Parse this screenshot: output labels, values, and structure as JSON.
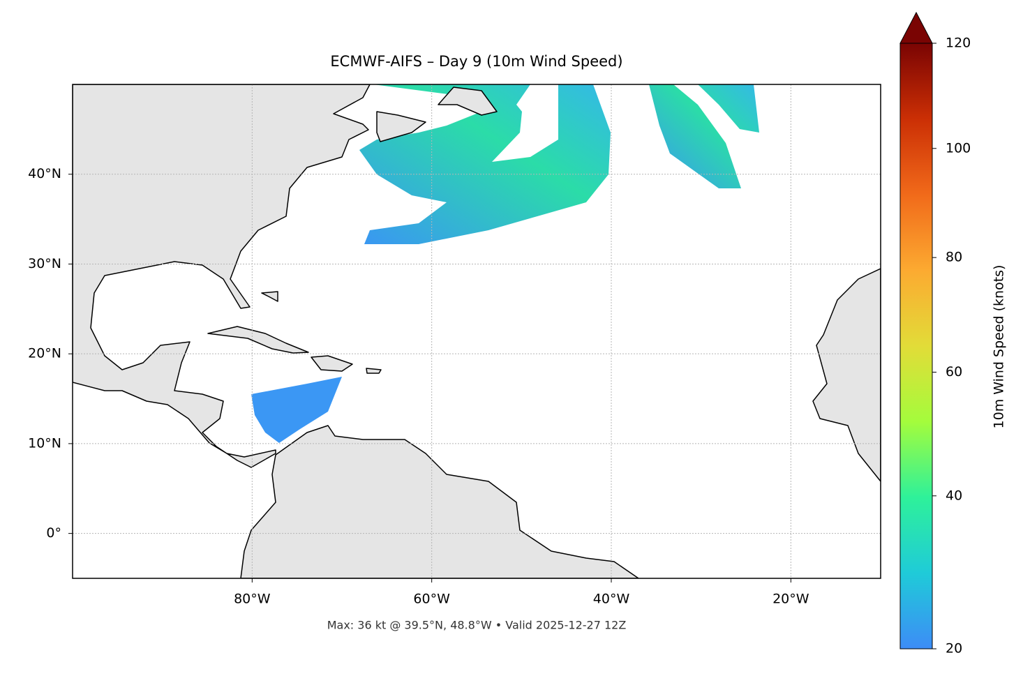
{
  "chart_data": {
    "type": "map",
    "title": "ECMWF-AIFS – Day 9 (10m Wind Speed)",
    "note": "Max: 36 kt @ 39.5°N, 48.8°W • Valid 2025-12-27 12Z",
    "xlim": [
      -100,
      -10
    ],
    "ylim": [
      -5,
      50
    ],
    "xticks": [
      {
        "value": -80,
        "label": "80°W"
      },
      {
        "value": -60,
        "label": "60°W"
      },
      {
        "value": -40,
        "label": "40°W"
      },
      {
        "value": -20,
        "label": "20°W"
      }
    ],
    "yticks": [
      {
        "value": 0,
        "label": "0°"
      },
      {
        "value": 10,
        "label": "10°N"
      },
      {
        "value": 20,
        "label": "20°N"
      },
      {
        "value": 30,
        "label": "30°N"
      },
      {
        "value": 40,
        "label": "40°N"
      }
    ],
    "grid": true,
    "colorbar": {
      "label": "10m Wind Speed (knots)",
      "lim": [
        20,
        120
      ],
      "ticks": [
        20,
        40,
        60,
        80,
        100,
        120
      ],
      "norm": "power",
      "gamma": 0.855,
      "extend": "max",
      "colors": [
        "#3d8cf7",
        "#1fcbd8",
        "#2ef19a",
        "#a4fc3c",
        "#e2dc38",
        "#fcaa31",
        "#f16a1a",
        "#cb2f05",
        "#7a0403"
      ]
    }
  }
}
